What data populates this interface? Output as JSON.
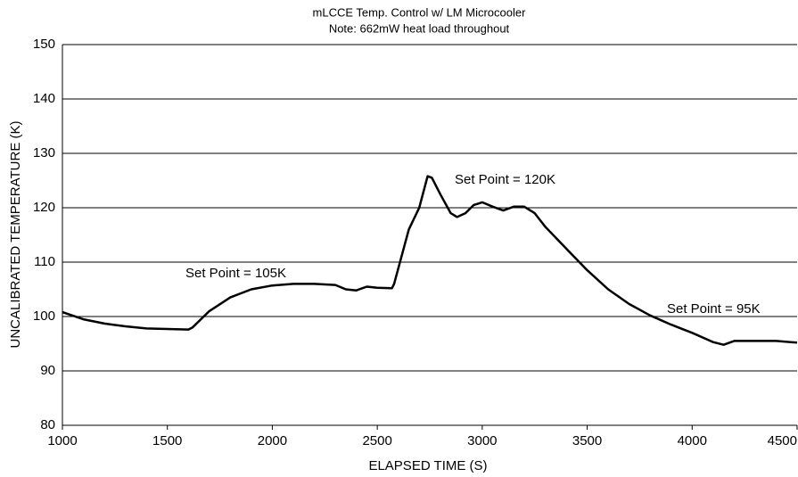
{
  "chart_data": {
    "type": "line",
    "title": "mLCCE Temp. Control w/ LM Microcooler",
    "subtitle": "Note: 662mW heat load throughout",
    "x_label": "ELAPSED TIME (S)",
    "y_label": "UNCALIBRATED TEMPERATURE (K)",
    "annotations": [
      "Set Point = 105K",
      "Set Point = 120K",
      "Set Point = 95K"
    ],
    "x": [
      1000,
      1100,
      1200,
      1300,
      1400,
      1500,
      1600,
      1620,
      1700,
      1800,
      1900,
      2000,
      2100,
      2200,
      2300,
      2350,
      2400,
      2450,
      2500,
      2570,
      2580,
      2650,
      2700,
      2740,
      2760,
      2800,
      2850,
      2880,
      2920,
      2960,
      3000,
      3050,
      3100,
      3150,
      3200,
      3250,
      3300,
      3400,
      3500,
      3600,
      3700,
      3800,
      3900,
      4000,
      4100,
      4150,
      4200,
      4300,
      4400,
      4500
    ],
    "series": [
      {
        "name": "Temperature",
        "color": "#000000",
        "values": [
          100.8,
          99.5,
          98.7,
          98.2,
          97.8,
          97.7,
          97.6,
          98,
          101,
          103.5,
          105,
          105.7,
          106,
          106,
          105.8,
          105,
          104.8,
          105.5,
          105.3,
          105.2,
          106,
          116,
          120,
          125.8,
          125.5,
          122.5,
          119,
          118.3,
          119,
          120.5,
          121,
          120.2,
          119.5,
          120.2,
          120.2,
          119,
          116.5,
          112.5,
          108.5,
          105,
          102.3,
          100.2,
          98.5,
          97,
          95.3,
          94.8,
          95.5,
          95.5,
          95.5,
          95.2
        ]
      }
    ],
    "xlim": [
      1000,
      4500
    ],
    "xticks": [
      1000,
      1500,
      2000,
      2500,
      3000,
      3500,
      4000,
      4500
    ],
    "ylim": [
      80,
      150
    ],
    "yticks": [
      80,
      90,
      100,
      110,
      120,
      130,
      140,
      150
    ],
    "grid": true
  }
}
